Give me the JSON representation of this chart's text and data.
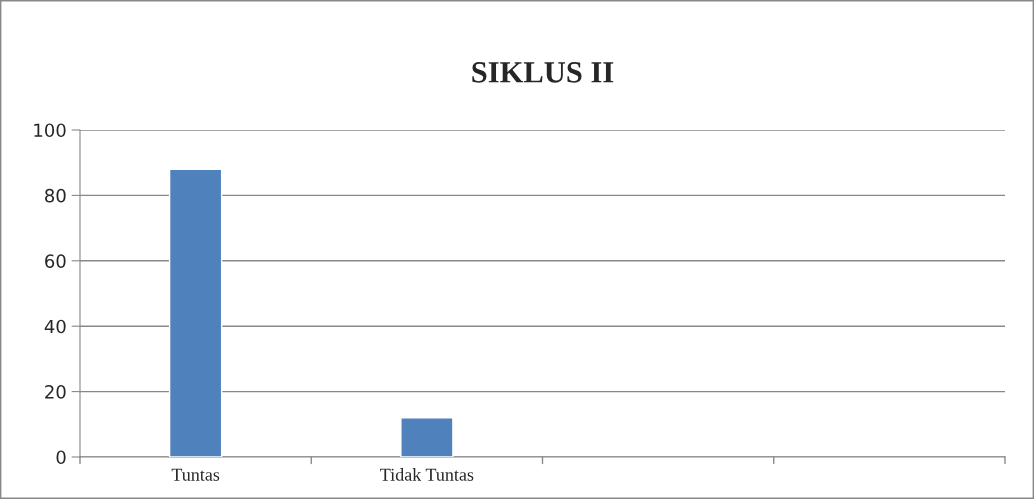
{
  "chart_data": {
    "type": "bar",
    "title": "SIKLUS II",
    "categories": [
      "Tuntas",
      "Tidak Tuntas",
      null,
      null
    ],
    "values": [
      88,
      12,
      null,
      null
    ],
    "color": "#4f81bd",
    "ylim": [
      0,
      100
    ],
    "yticks": [
      0,
      20,
      40,
      60,
      80,
      100
    ],
    "grid": "y",
    "legend": false
  }
}
